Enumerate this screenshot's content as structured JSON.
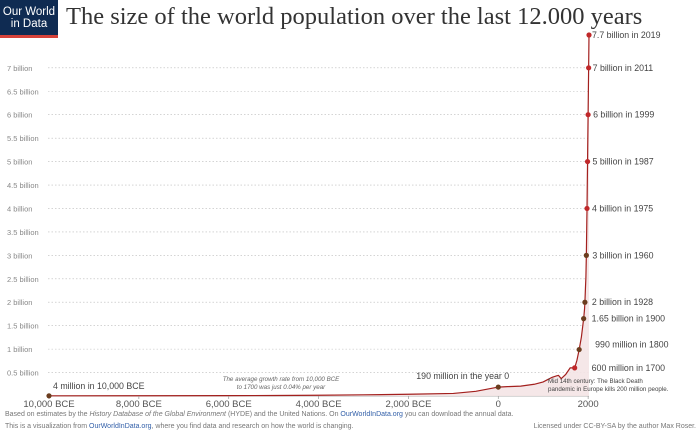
{
  "header": {
    "logo_line1": "Our World",
    "logo_line2": "in Data",
    "title": "The size of the world population over the last 12.000 years"
  },
  "colors": {
    "line": "#a3201e",
    "marker": "#c0282a",
    "marker_dark": "#6b3d1e",
    "fill": "#f4e4e6",
    "grid": "#bbbbbb",
    "logo_bg": "#0f2b52",
    "logo_accent": "#d6423a",
    "link": "#3360a9"
  },
  "chart_data": {
    "type": "line",
    "title": "The size of the world population over the last 12.000 years",
    "xlabel": "",
    "ylabel": "",
    "xlim": [
      -10000,
      2019
    ],
    "ylim": [
      0,
      7.7
    ],
    "grid": "horizontal dotted",
    "x_ticks": [
      {
        "value": -10000,
        "label": "10,000 BCE"
      },
      {
        "value": -8000,
        "label": "8,000 BCE"
      },
      {
        "value": -6000,
        "label": "6,000 BCE"
      },
      {
        "value": -4000,
        "label": "4,000 BCE"
      },
      {
        "value": -2000,
        "label": "2,000 BCE"
      },
      {
        "value": 0,
        "label": "0"
      },
      {
        "value": 2000,
        "label": "2000"
      }
    ],
    "y_ticks": [
      {
        "value": 0.5,
        "label": "0.5 billion"
      },
      {
        "value": 1,
        "label": "1 billion"
      },
      {
        "value": 1.5,
        "label": "1.5 billion"
      },
      {
        "value": 2,
        "label": "2 billion"
      },
      {
        "value": 2.5,
        "label": "2.5 billion"
      },
      {
        "value": 3,
        "label": "3 billion"
      },
      {
        "value": 3.5,
        "label": "3.5 billion"
      },
      {
        "value": 4,
        "label": "4 billion"
      },
      {
        "value": 4.5,
        "label": "4.5 billion"
      },
      {
        "value": 5,
        "label": "5 billion"
      },
      {
        "value": 5.5,
        "label": "5.5 billion"
      },
      {
        "value": 6,
        "label": "6 billion"
      },
      {
        "value": 6.5,
        "label": "6.5 billion"
      },
      {
        "value": 7,
        "label": "7 billion"
      }
    ],
    "series": [
      {
        "x": [
          -10000,
          -8000,
          -6000,
          -5000,
          -4000,
          -3000,
          -2000,
          -1000,
          -500,
          0,
          200,
          500,
          800,
          1000,
          1100,
          1200,
          1300,
          1340,
          1400,
          1500,
          1600,
          1700,
          1750,
          1800,
          1850,
          1900,
          1910,
          1920,
          1928,
          1940,
          1950,
          1960,
          1970,
          1975,
          1980,
          1987,
          1990,
          1999,
          2005,
          2011,
          2015,
          2019
        ],
        "y": [
          0.004,
          0.005,
          0.008,
          0.011,
          0.016,
          0.025,
          0.037,
          0.055,
          0.1,
          0.19,
          0.2,
          0.21,
          0.25,
          0.3,
          0.35,
          0.4,
          0.43,
          0.44,
          0.37,
          0.46,
          0.6,
          0.6,
          0.76,
          0.99,
          1.26,
          1.65,
          1.75,
          1.86,
          2.0,
          2.3,
          2.53,
          3.0,
          3.7,
          4.0,
          4.45,
          5.0,
          5.3,
          6.0,
          6.5,
          7.0,
          7.35,
          7.7
        ]
      }
    ],
    "markers": [
      {
        "x": -10000,
        "y": 0.004,
        "label": "4 million in 10,000 BCE",
        "dark": true
      },
      {
        "x": 0,
        "y": 0.19,
        "label": "190 million in the year 0",
        "dark": true
      },
      {
        "x": 1700,
        "y": 0.6,
        "label": "600 million in 1700",
        "dark": false
      },
      {
        "x": 1800,
        "y": 0.99,
        "label": "990 million in 1800",
        "dark": true
      },
      {
        "x": 1900,
        "y": 1.65,
        "label": "1.65 billion in 1900",
        "dark": true
      },
      {
        "x": 1928,
        "y": 2.0,
        "label": "2 billion in 1928",
        "dark": true
      },
      {
        "x": 1960,
        "y": 3.0,
        "label": "3 billion in 1960",
        "dark": true
      },
      {
        "x": 1975,
        "y": 4.0,
        "label": "4 billion in 1975",
        "dark": false
      },
      {
        "x": 1987,
        "y": 5.0,
        "label": "5 billion in 1987",
        "dark": false
      },
      {
        "x": 1999,
        "y": 6.0,
        "label": "6 billion in 1999",
        "dark": false
      },
      {
        "x": 2011,
        "y": 7.0,
        "label": "7 billion in 2011",
        "dark": false
      },
      {
        "x": 2019,
        "y": 7.7,
        "label": "7.7 billion in 2019",
        "dark": false
      }
    ],
    "annotations": [
      {
        "line1": "The average growth rate from 10,000 BCE",
        "line2": "to 1700 was just  0.04% per year"
      },
      {
        "line1": "Mid 14th century: The Black Death",
        "line2": "pandemic in Europe kills 200 million people."
      }
    ]
  },
  "footer": {
    "line1_a": "Based on estimates by the ",
    "line1_b": "History Database of the Global Environment",
    "line1_c": " (HYDE) and the United Nations. On ",
    "line1_link": "OurWorldInData.org",
    "line1_d": " you can download the annual data.",
    "line2_a": "This is a visualization from ",
    "line2_link": "OurWorldInData.org",
    "line2_b": ", where you find data and research on how the world is changing.",
    "license_a": "Licensed under ",
    "license_link": "CC-BY-SA",
    "license_b": " by the author Max Roser."
  }
}
